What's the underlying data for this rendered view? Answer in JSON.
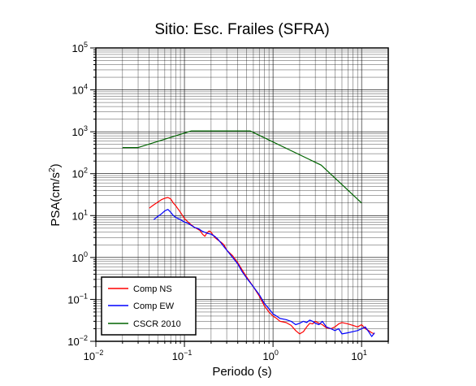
{
  "chart_data": {
    "type": "line",
    "title": "Sitio: Esc. Frailes (SFRA)",
    "xlabel": "Periodo (s)",
    "ylabel_main": "PSA(cm/s",
    "ylabel_sup": "2",
    "ylabel_close": ")",
    "xscale": "log",
    "yscale": "log",
    "xlim": [
      0.01,
      20
    ],
    "ylim": [
      0.01,
      100000
    ],
    "x_ticks": [
      {
        "base": "10",
        "exp": "−2"
      },
      {
        "base": "10",
        "exp": "−1"
      },
      {
        "base": "10",
        "exp": "0"
      },
      {
        "base": "10",
        "exp": "1"
      }
    ],
    "y_ticks": [
      {
        "base": "10",
        "exp": "−2"
      },
      {
        "base": "10",
        "exp": "−1"
      },
      {
        "base": "10",
        "exp": "0"
      },
      {
        "base": "10",
        "exp": "1"
      },
      {
        "base": "10",
        "exp": "2"
      },
      {
        "base": "10",
        "exp": "3"
      },
      {
        "base": "10",
        "exp": "4"
      },
      {
        "base": "10",
        "exp": "5"
      }
    ],
    "grid": true,
    "legend_position": "bottom-left",
    "series": [
      {
        "name": "Comp NS",
        "color": "#ff0000",
        "x": [
          0.04,
          0.045,
          0.05,
          0.055,
          0.06,
          0.065,
          0.07,
          0.075,
          0.08,
          0.09,
          0.1,
          0.11,
          0.12,
          0.13,
          0.14,
          0.15,
          0.16,
          0.17,
          0.18,
          0.19,
          0.2,
          0.22,
          0.24,
          0.26,
          0.28,
          0.3,
          0.35,
          0.4,
          0.45,
          0.5,
          0.6,
          0.7,
          0.8,
          0.9,
          1.0,
          1.1,
          1.2,
          1.4,
          1.6,
          1.8,
          2.0,
          2.2,
          2.4,
          2.6,
          2.8,
          3.0,
          3.3,
          3.6,
          4.0,
          4.5,
          5.0,
          5.5,
          6.0,
          7.0,
          8.0,
          9.0,
          10.0,
          11.0,
          12.0,
          13.0,
          14.0
        ],
        "y": [
          15,
          18,
          21,
          24,
          26,
          27,
          25,
          20,
          17,
          12,
          8.5,
          7.0,
          6.0,
          5.2,
          4.8,
          4.4,
          3.6,
          3.2,
          3.9,
          4.3,
          4.0,
          3.0,
          2.6,
          2.3,
          2.0,
          1.5,
          1.1,
          0.75,
          0.5,
          0.35,
          0.2,
          0.12,
          0.07,
          0.05,
          0.04,
          0.035,
          0.03,
          0.028,
          0.024,
          0.018,
          0.015,
          0.017,
          0.022,
          0.027,
          0.026,
          0.03,
          0.027,
          0.025,
          0.021,
          0.02,
          0.022,
          0.026,
          0.028,
          0.026,
          0.024,
          0.022,
          0.025,
          0.02,
          0.018,
          0.016,
          0.015
        ]
      },
      {
        "name": "Comp EW",
        "color": "#0000ff",
        "x": [
          0.045,
          0.05,
          0.055,
          0.06,
          0.065,
          0.07,
          0.075,
          0.08,
          0.09,
          0.1,
          0.11,
          0.12,
          0.13,
          0.14,
          0.15,
          0.16,
          0.18,
          0.2,
          0.22,
          0.24,
          0.26,
          0.28,
          0.3,
          0.35,
          0.4,
          0.45,
          0.5,
          0.6,
          0.7,
          0.8,
          0.9,
          1.0,
          1.1,
          1.2,
          1.4,
          1.6,
          1.8,
          2.0,
          2.2,
          2.4,
          2.6,
          2.8,
          3.0,
          3.3,
          3.6,
          4.0,
          4.5,
          5.0,
          5.5,
          6.0,
          7.0,
          8.0,
          9.0,
          10.0,
          11.0,
          12.0,
          13.0,
          14.0
        ],
        "y": [
          8.0,
          9.5,
          11,
          13,
          14,
          12,
          10,
          9.0,
          8.0,
          7.0,
          6.5,
          5.8,
          5.2,
          5.0,
          4.6,
          4.2,
          3.8,
          3.6,
          3.2,
          2.7,
          2.2,
          1.8,
          1.5,
          1.0,
          0.7,
          0.45,
          0.33,
          0.2,
          0.13,
          0.08,
          0.06,
          0.045,
          0.04,
          0.035,
          0.033,
          0.03,
          0.025,
          0.027,
          0.03,
          0.028,
          0.032,
          0.03,
          0.027,
          0.025,
          0.03,
          0.022,
          0.02,
          0.018,
          0.02,
          0.015,
          0.016,
          0.017,
          0.018,
          0.02,
          0.022,
          0.017,
          0.013,
          0.016
        ]
      },
      {
        "name": "CSCR 2010",
        "color": "#006400",
        "x": [
          0.02,
          0.03,
          0.12,
          0.55,
          3.5,
          10.0
        ],
        "y": [
          420,
          420,
          1050,
          1050,
          160,
          20
        ]
      }
    ]
  }
}
